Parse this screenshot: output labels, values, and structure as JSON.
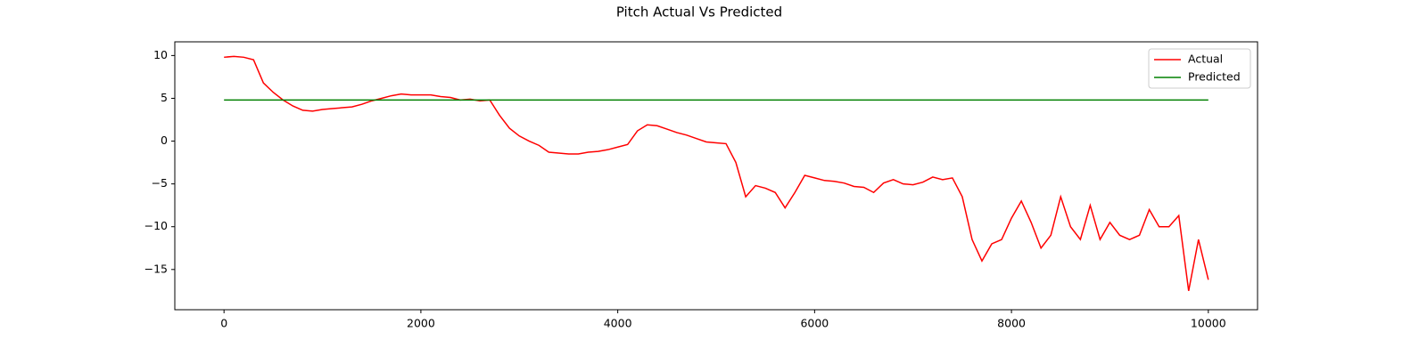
{
  "chart_data": {
    "type": "line",
    "title": "Pitch Actual Vs Predicted",
    "x": [
      0,
      100,
      200,
      300,
      400,
      500,
      600,
      700,
      800,
      900,
      1000,
      1100,
      1200,
      1300,
      1400,
      1500,
      1600,
      1700,
      1800,
      1900,
      2000,
      2100,
      2200,
      2300,
      2400,
      2500,
      2600,
      2700,
      2800,
      2900,
      3000,
      3100,
      3200,
      3300,
      3400,
      3500,
      3600,
      3700,
      3800,
      3900,
      4000,
      4100,
      4200,
      4300,
      4400,
      4500,
      4600,
      4700,
      4800,
      4900,
      5000,
      5100,
      5200,
      5300,
      5400,
      5500,
      5600,
      5700,
      5800,
      5900,
      6000,
      6100,
      6200,
      6300,
      6400,
      6500,
      6600,
      6700,
      6800,
      6900,
      7000,
      7100,
      7200,
      7300,
      7400,
      7500,
      7600,
      7700,
      7800,
      7900,
      8000,
      8100,
      8200,
      8300,
      8400,
      8500,
      8600,
      8700,
      8800,
      8900,
      9000,
      9100,
      9200,
      9300,
      9400,
      9500,
      9600,
      9700,
      9800,
      9900,
      10000
    ],
    "series": [
      {
        "name": "Actual",
        "color": "#ff0000",
        "values": [
          9.8,
          9.9,
          9.8,
          9.5,
          6.8,
          5.7,
          4.8,
          4.1,
          3.6,
          3.5,
          3.7,
          3.8,
          3.9,
          4.0,
          4.3,
          4.7,
          5.0,
          5.3,
          5.5,
          5.4,
          5.4,
          5.4,
          5.2,
          5.1,
          4.8,
          4.9,
          4.7,
          4.8,
          3.0,
          1.5,
          0.6,
          0.0,
          -0.5,
          -1.3,
          -1.4,
          -1.5,
          -1.5,
          -1.3,
          -1.2,
          -1.0,
          -0.7,
          -0.4,
          1.2,
          1.9,
          1.8,
          1.4,
          1.0,
          0.7,
          0.3,
          -0.1,
          -0.2,
          -0.3,
          -2.5,
          -6.5,
          -5.2,
          -5.5,
          -6.0,
          -7.8,
          -6.0,
          -4.0,
          -4.3,
          -4.6,
          -4.7,
          -4.9,
          -5.3,
          -5.4,
          -6.0,
          -4.9,
          -4.5,
          -5.0,
          -5.1,
          -4.8,
          -4.2,
          -4.5,
          -4.3,
          -6.5,
          -11.5,
          -14.0,
          -12.0,
          -11.5,
          -9.0,
          -7.0,
          -9.5,
          -12.5,
          -11.0,
          -6.5,
          -10.0,
          -11.5,
          -7.5,
          -11.5,
          -9.5,
          -11.0,
          -11.5,
          -11.0,
          -8.0,
          -10.0,
          -10.0,
          -8.7,
          -17.5,
          -11.5,
          -16.2
        ]
      },
      {
        "name": "Predicted",
        "color": "#008000",
        "values": [
          4.8,
          4.8,
          4.8,
          4.8,
          4.8,
          4.8,
          4.8,
          4.8,
          4.8,
          4.8,
          4.8,
          4.8,
          4.8,
          4.8,
          4.8,
          4.8,
          4.8,
          4.8,
          4.8,
          4.8,
          4.8,
          4.8,
          4.8,
          4.8,
          4.8,
          4.8,
          4.8,
          4.8,
          4.8,
          4.8,
          4.8,
          4.8,
          4.8,
          4.8,
          4.8,
          4.8,
          4.8,
          4.8,
          4.8,
          4.8,
          4.8,
          4.8,
          4.8,
          4.8,
          4.8,
          4.8,
          4.8,
          4.8,
          4.8,
          4.8,
          4.8,
          4.8,
          4.8,
          4.8,
          4.8,
          4.8,
          4.8,
          4.8,
          4.8,
          4.8,
          4.8,
          4.8,
          4.8,
          4.8,
          4.8,
          4.8,
          4.8,
          4.8,
          4.8,
          4.8,
          4.8,
          4.8,
          4.8,
          4.8,
          4.8,
          4.8,
          4.8,
          4.8,
          4.8,
          4.8,
          4.8,
          4.8,
          4.8,
          4.8,
          4.8,
          4.8,
          4.8,
          4.8,
          4.8,
          4.8,
          4.8,
          4.8,
          4.8,
          4.8,
          4.8,
          4.8,
          4.8,
          4.8,
          4.8,
          4.8,
          4.8
        ]
      }
    ],
    "xlim": [
      -500,
      10500
    ],
    "xticks": [
      0,
      2000,
      4000,
      6000,
      8000,
      10000
    ],
    "ylim": [
      -19.7,
      11.6
    ],
    "yticks": [
      {
        "value": -15,
        "label": "−15"
      },
      {
        "value": -10,
        "label": "−10"
      },
      {
        "value": -5,
        "label": "−5"
      },
      0,
      5,
      10
    ],
    "legend": "upper right"
  }
}
